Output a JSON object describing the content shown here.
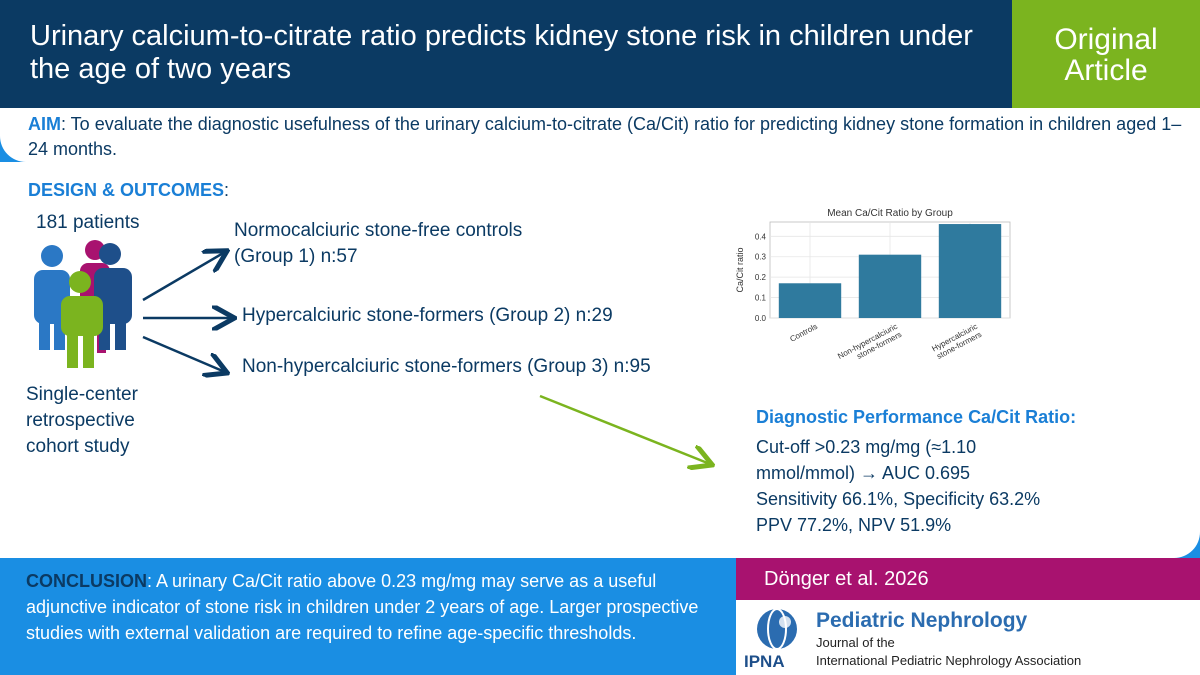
{
  "header": {
    "title": "Urinary calcium-to-citrate ratio predicts kidney stone risk in children under the age of two years",
    "badge": "Original Article"
  },
  "aim": {
    "label": "AIM",
    "text": ": To evaluate the diagnostic usefulness of the urinary calcium-to-citrate (Ca/Cit) ratio for predicting kidney stone formation in children aged 1–24 months."
  },
  "design": {
    "label": "DESIGN & OUTCOMES",
    "suffix": ":",
    "patients": "181 patients",
    "group1_line1": "Normocalciuric stone-free controls",
    "group1_line2": "(Group 1) n:57",
    "group2": "Hypercalciuric stone-formers (Group 2) n:29",
    "group3": "Non-hypercalciuric stone-formers (Group 3) n:95",
    "study_line1": "Single-center",
    "study_line2": "retrospective",
    "study_line3": "cohort study"
  },
  "chart_data": {
    "type": "bar",
    "title": "Mean Ca/Cit Ratio by Group",
    "ylabel": "Ca/Cit ratio",
    "xlabel": "",
    "categories": [
      "Controls",
      "Non-hypercalciuric stone-formers",
      "Hypercalciuric stone-formers"
    ],
    "category_lines": [
      [
        "Controls"
      ],
      [
        "Non-hypercalciuric",
        "stone-formers"
      ],
      [
        "Hypercalciuric",
        "stone-formers"
      ]
    ],
    "values": [
      0.17,
      0.31,
      0.46
    ],
    "ylim": [
      0,
      0.47
    ],
    "yticks": [
      "0.0",
      "0.1",
      "0.2",
      "0.3",
      "0.4"
    ],
    "grid": true,
    "bar_color": "#2f7a9e"
  },
  "performance": {
    "title": "Diagnostic Performance Ca/Cit Ratio:",
    "line1": "Cut-off >0.23 mg/mg (≈1.10",
    "line2": "mmol/mmol) → AUC 0.695",
    "line3": "Sensitivity 66.1%, Specificity 63.2%",
    "line4": "PPV 77.2%, NPV 51.9%"
  },
  "conclusion": {
    "label": "CONCLUSION",
    "text": ": A urinary Ca/Cit ratio above 0.23 mg/mg may serve as a useful adjunctive indicator of stone risk in children under 2 years of age. Larger prospective studies with external validation are required to refine age-specific thresholds."
  },
  "citation": "Dönger et al. 2026",
  "journal": {
    "name": "Pediatric Nephrology",
    "sub1": "Journal of the",
    "sub2": "International Pediatric Nephrology Association",
    "logo": "IPNA"
  },
  "colors": {
    "dark_blue": "#0b3a63",
    "bright_blue": "#1a8ee3",
    "green": "#7bb41f",
    "magenta": "#a8126f",
    "label_blue": "#1a7fd6"
  }
}
